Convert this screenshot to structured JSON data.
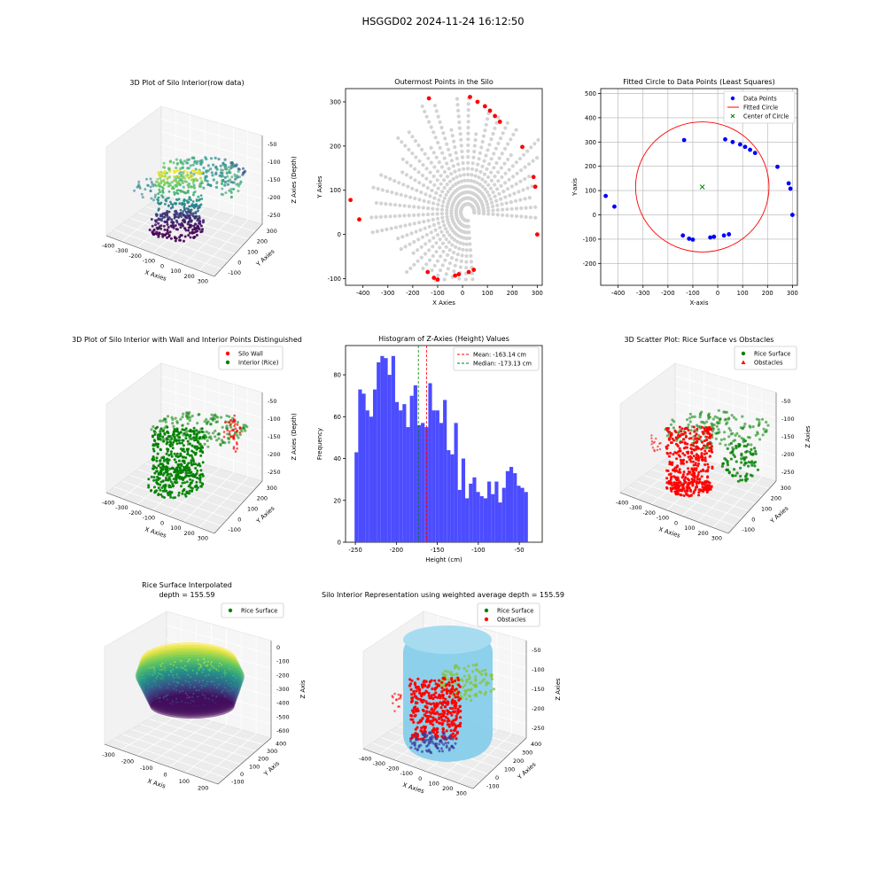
{
  "suptitle": "HSGGD02 2024-11-24 16:12:50",
  "colors": {
    "gray": "#d3d3d3",
    "red": "#ff0000",
    "green": "#008000",
    "blue": "#0000ff",
    "hist": "#4c4cff",
    "sky": "#87ceeb"
  },
  "chart_data": [
    {
      "id": "p1",
      "type": "scatter",
      "title": "3D Plot of Silo Interior(row data)",
      "xlabel": "X Axies",
      "ylabel": "Y Axies",
      "zlabel": "Z Axies (Depth)",
      "xticks": [
        "-400",
        "-300",
        "-200",
        "-100",
        "0",
        "100",
        "200",
        "300"
      ],
      "yticks": [
        "-100",
        "0",
        "100",
        "200",
        "300"
      ],
      "zticks": [
        "-50",
        "-100",
        "-150",
        "-200",
        "-250"
      ],
      "colormap": "viridis"
    },
    {
      "id": "p2",
      "type": "scatter",
      "title": "Outermost Points in the Silo",
      "xlabel": "X Axies",
      "ylabel": "Y Axies",
      "xlim": [
        -470,
        320
      ],
      "ylim": [
        -115,
        330
      ],
      "xticks": [
        -400,
        -300,
        -200,
        -100,
        0,
        100,
        200,
        300
      ],
      "yticks": [
        -100,
        0,
        100,
        200,
        300
      ],
      "outermost_points": [
        [
          -135,
          308
        ],
        [
          30,
          311
        ],
        [
          60,
          300
        ],
        [
          90,
          290
        ],
        [
          110,
          280
        ],
        [
          130,
          268
        ],
        [
          150,
          255
        ],
        [
          240,
          198
        ],
        [
          285,
          130
        ],
        [
          292,
          108
        ],
        [
          300,
          0
        ],
        [
          -450,
          78
        ],
        [
          -415,
          34
        ],
        [
          -140,
          -85
        ],
        [
          -115,
          -98
        ],
        [
          -100,
          -102
        ],
        [
          -30,
          -93
        ],
        [
          -15,
          -90
        ],
        [
          25,
          -85
        ],
        [
          45,
          -80
        ]
      ]
    },
    {
      "id": "p3",
      "type": "scatter",
      "title": "Fitted Circle to Data Points (Least Squares)",
      "xlabel": "X-axis",
      "ylabel": "Y-axis",
      "xlim": [
        -470,
        320
      ],
      "ylim": [
        -290,
        520
      ],
      "xticks": [
        -400,
        -300,
        -200,
        -100,
        0,
        100,
        200,
        300
      ],
      "yticks": [
        -200,
        -100,
        0,
        100,
        200,
        300,
        400,
        500
      ],
      "grid": true,
      "legend": "top-right",
      "legend_entries": [
        "Data Points",
        "Fitted Circle",
        "Center of Circle"
      ],
      "points": [
        [
          -135,
          308
        ],
        [
          30,
          311
        ],
        [
          60,
          300
        ],
        [
          90,
          290
        ],
        [
          110,
          280
        ],
        [
          130,
          268
        ],
        [
          150,
          255
        ],
        [
          240,
          198
        ],
        [
          285,
          130
        ],
        [
          292,
          108
        ],
        [
          300,
          0
        ],
        [
          -450,
          78
        ],
        [
          -415,
          34
        ],
        [
          -140,
          -85
        ],
        [
          -115,
          -98
        ],
        [
          -100,
          -102
        ],
        [
          -30,
          -93
        ],
        [
          -15,
          -90
        ],
        [
          25,
          -85
        ],
        [
          45,
          -80
        ]
      ],
      "center": [
        -62,
        115
      ],
      "radius": 268
    },
    {
      "id": "p4",
      "type": "scatter",
      "title": "3D Plot of Silo Interior with Wall and Interior Points Distinguished",
      "xlabel": "X Axies",
      "ylabel": "Y Axies",
      "zlabel": "Z Axies (Depth)",
      "xticks": [
        "-400",
        "-300",
        "-200",
        "-100",
        "0",
        "100",
        "200",
        "300"
      ],
      "yticks": [
        "-100",
        "0",
        "100",
        "200",
        "300"
      ],
      "zticks": [
        "-50",
        "-100",
        "-150",
        "-200",
        "-250"
      ],
      "legend": "top-right",
      "legend_entries": [
        "Silo Wall",
        "Interior (Rice)"
      ]
    },
    {
      "id": "p5",
      "type": "bar",
      "title": "Histogram of Z-Axies (Height) Values",
      "xlabel": "Height (cm)",
      "ylabel": "Frequency",
      "bin_start": -251,
      "bin_width": 4.5,
      "xlim": [
        -262,
        -22
      ],
      "ylim": [
        0,
        94
      ],
      "xticks": [
        -250,
        -200,
        -150,
        -100,
        -50
      ],
      "yticks": [
        0,
        20,
        40,
        60,
        80
      ],
      "values": [
        43,
        73,
        71,
        63,
        60,
        73,
        86,
        89,
        88,
        80,
        89,
        67,
        63,
        66,
        55,
        70,
        75,
        56,
        57,
        55,
        76,
        63,
        63,
        57,
        68,
        44,
        42,
        57,
        25,
        40,
        21,
        28,
        31,
        24,
        22,
        21,
        29,
        23,
        29,
        19,
        26,
        34,
        36,
        33,
        27,
        26,
        24
      ],
      "mean": -163.14,
      "median": -173.13,
      "legend_entries": [
        "Mean: -163.14 cm",
        "Median: -173.13 cm"
      ],
      "legend": "top-right"
    },
    {
      "id": "p6",
      "type": "scatter",
      "title": "3D Scatter Plot: Rice Surface vs Obstacles",
      "xlabel": "X Axies",
      "ylabel": "Y Axies",
      "zlabel": "Z Axies",
      "xticks": [
        "-400",
        "-300",
        "-200",
        "-100",
        "0",
        "100",
        "200",
        "300"
      ],
      "yticks": [
        "-100",
        "0",
        "100",
        "200",
        "300"
      ],
      "zticks": [
        "-50",
        "-100",
        "-150",
        "-200",
        "-250"
      ],
      "legend": "top-right",
      "legend_entries": [
        "Rice Surface",
        "Obstacles"
      ]
    },
    {
      "id": "p7",
      "type": "scatter",
      "title": "Rice Surface Interpolated",
      "subtitle": "depth = 155.59",
      "xlabel": "X Axis",
      "ylabel": "Y Axis",
      "zlabel": "Z Axis",
      "xticks": [
        "-300",
        "-200",
        "-100",
        "0",
        "100",
        "200"
      ],
      "yticks": [
        "-100",
        "0",
        "100",
        "200",
        "300",
        "400"
      ],
      "zticks": [
        "0",
        "-100",
        "-200",
        "-300",
        "-400",
        "-500",
        "-600"
      ],
      "legend": "top-right",
      "legend_entries": [
        "Rice Surface"
      ]
    },
    {
      "id": "p8",
      "type": "scatter",
      "title": "Silo Interior Representation using weighted average depth = 155.59",
      "xlabel": "X Axies",
      "ylabel": "Y Axies",
      "zlabel": "Z Axies",
      "xticks": [
        "-400",
        "-300",
        "-200",
        "-100",
        "0",
        "100",
        "200",
        "300"
      ],
      "yticks": [
        "-100",
        "0",
        "100",
        "200",
        "300",
        "400"
      ],
      "zticks": [
        "-50",
        "-100",
        "-150",
        "-200",
        "-250"
      ],
      "legend": "top-right",
      "legend_entries": [
        "Rice Surface",
        "Obstacles"
      ]
    }
  ]
}
